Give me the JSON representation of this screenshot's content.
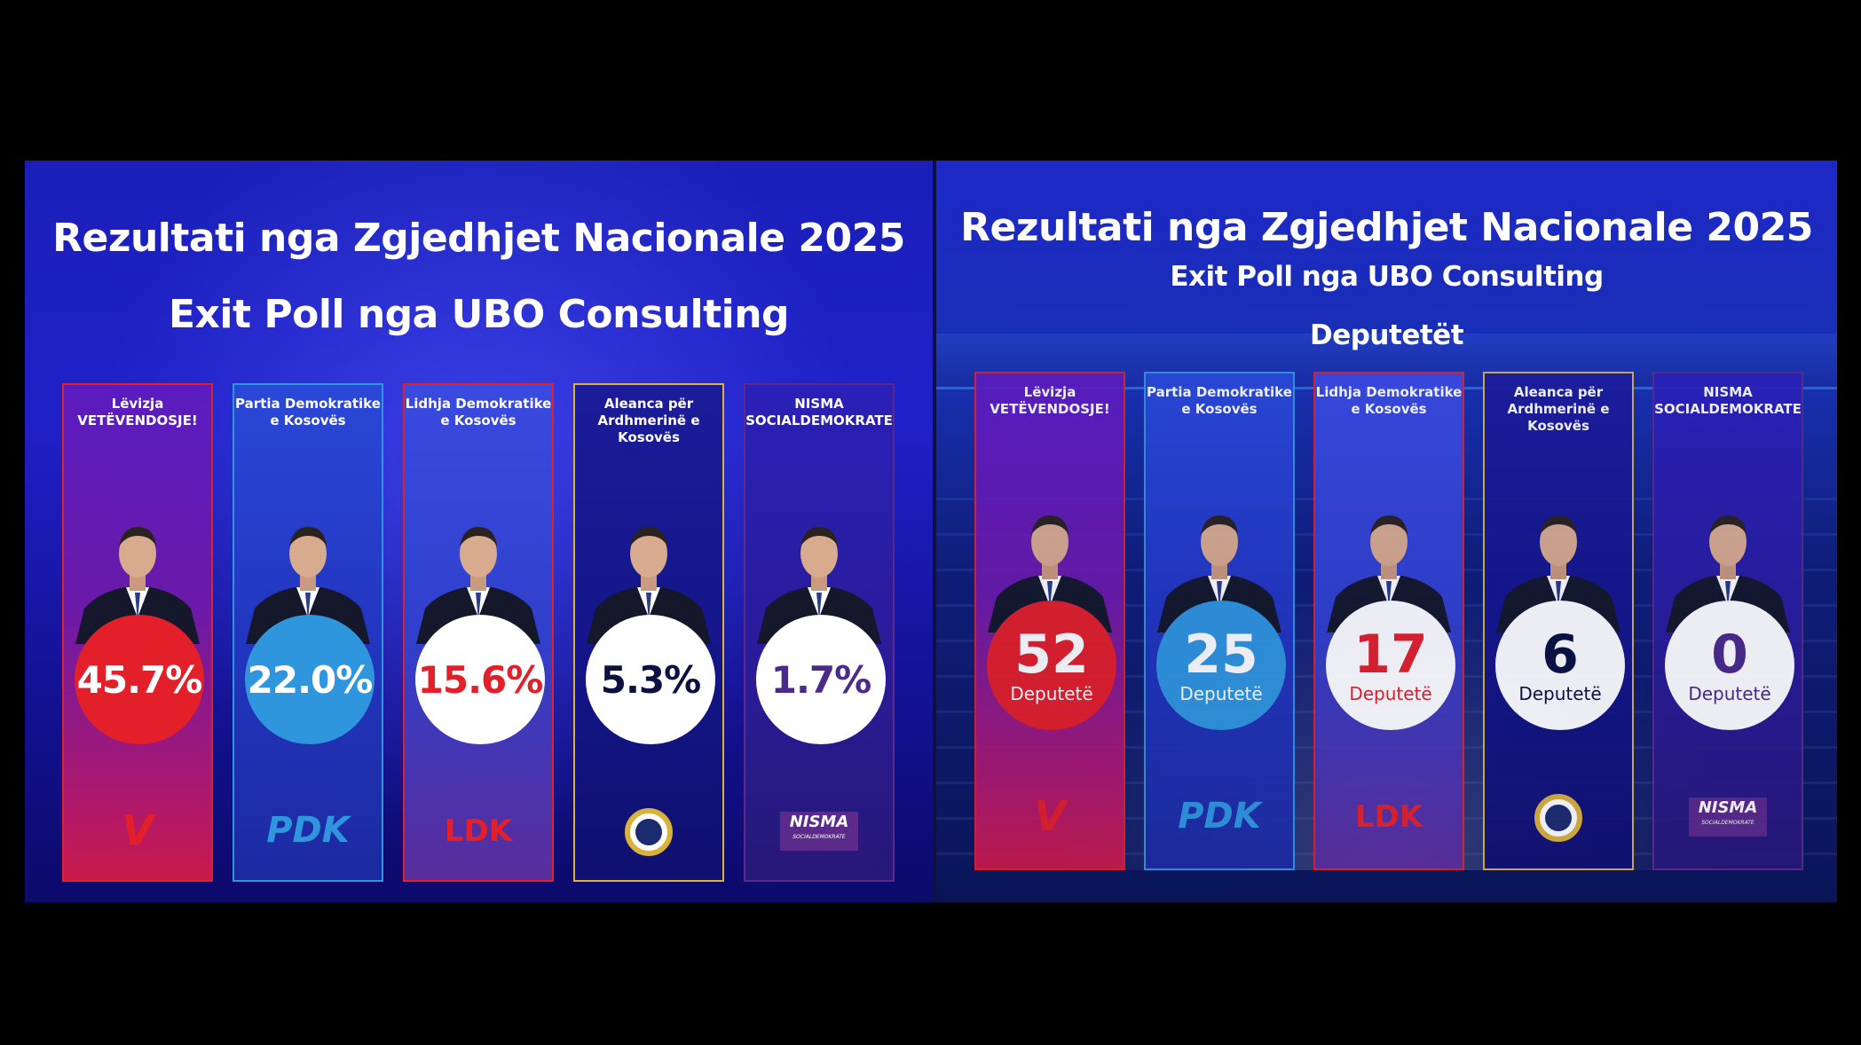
{
  "left": {
    "title": "Rezultati nga Zgjedhjet Nacionale 2025",
    "subtitle": "Exit Poll nga UBO Consulting"
  },
  "right": {
    "title": "Rezultati nga Zgjedhjet Nacionale 2025",
    "subtitle": "Exit Poll nga UBO Consulting",
    "section": "Deputetët"
  },
  "parties": [
    {
      "name1": "Lëvizja",
      "name2": "VETËVENDOSJE!",
      "logo": "V",
      "nisma_sub": "",
      "percent": "45.7%",
      "seats": "52",
      "seat_label": "Deputetë",
      "color": "#e3202a",
      "seat_text": "#ffffff",
      "pct_text": "#ffffff"
    },
    {
      "name1": "Partia Demokratike",
      "name2": "e Kosovës",
      "logo": "PDK",
      "nisma_sub": "",
      "percent": "22.0%",
      "seats": "25",
      "seat_label": "Deputetë",
      "color": "#2f95dd",
      "seat_text": "#ffffff",
      "pct_text": "#ffffff"
    },
    {
      "name1": "Lidhja Demokratike",
      "name2": "e Kosovës",
      "logo": "LDK",
      "nisma_sub": "",
      "percent": "15.6%",
      "seats": "17",
      "seat_label": "Deputetë",
      "color": "#ffffff",
      "seat_text": "#e3202a",
      "pct_text": "#e3202a"
    },
    {
      "name1": "Aleanca për",
      "name2": "Ardhmerinë e Kosovës",
      "logo": "AAK",
      "nisma_sub": "",
      "percent": "5.3%",
      "seats": "6",
      "seat_label": "Deputetë",
      "color": "#ffffff",
      "seat_text": "#0b1140",
      "pct_text": "#0b1140"
    },
    {
      "name1": "NISMA",
      "name2": "SOCIALDEMOKRATE",
      "logo": "NISMA",
      "nisma_sub": "SOCIALDEMOKRATE",
      "percent": "1.7%",
      "seats": "0",
      "seat_label": "Deputetë",
      "color": "#ffffff",
      "seat_text": "#4a2a8a",
      "pct_text": "#4a2a8a"
    }
  ],
  "chart_data": [
    {
      "type": "table",
      "title": "Rezultati nga Zgjedhjet Nacionale 2025",
      "subtitle": "Exit Poll nga UBO Consulting",
      "categories": [
        "Lëvizja VETËVENDOSJE!",
        "Partia Demokratike e Kosovës",
        "Lidhja Demokratike e Kosovës",
        "Aleanca për Ardhmerinë e Kosovës",
        "NISMA SOCIALDEMOKRATE"
      ],
      "values": [
        45.7,
        22.0,
        15.6,
        5.3,
        1.7
      ],
      "unit": "%"
    },
    {
      "type": "table",
      "title": "Rezultati nga Zgjedhjet Nacionale 2025",
      "subtitle": "Exit Poll nga UBO Consulting",
      "categories": [
        "Lëvizja VETËVENDOSJE!",
        "Partia Demokratike e Kosovës",
        "Lidhja Demokratike e Kosovës",
        "Aleanca për Ardhmerinë e Kosovës",
        "NISMA SOCIALDEMOKRATE"
      ],
      "values": [
        52,
        25,
        17,
        6,
        0
      ],
      "unit": "Deputetë"
    }
  ]
}
